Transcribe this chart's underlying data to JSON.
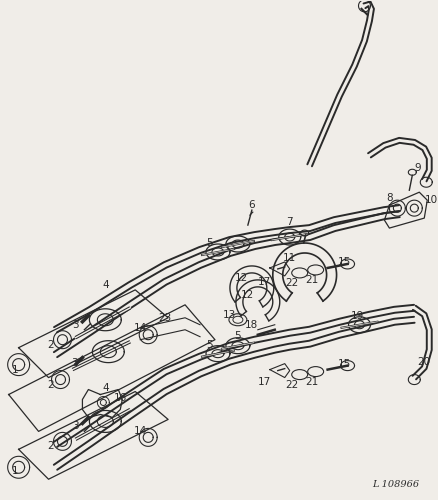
{
  "bg_color": "#f0ede8",
  "line_color": "#2a2a2a",
  "fig_width": 4.39,
  "fig_height": 5.0,
  "dpi": 100,
  "note": "L 108966"
}
